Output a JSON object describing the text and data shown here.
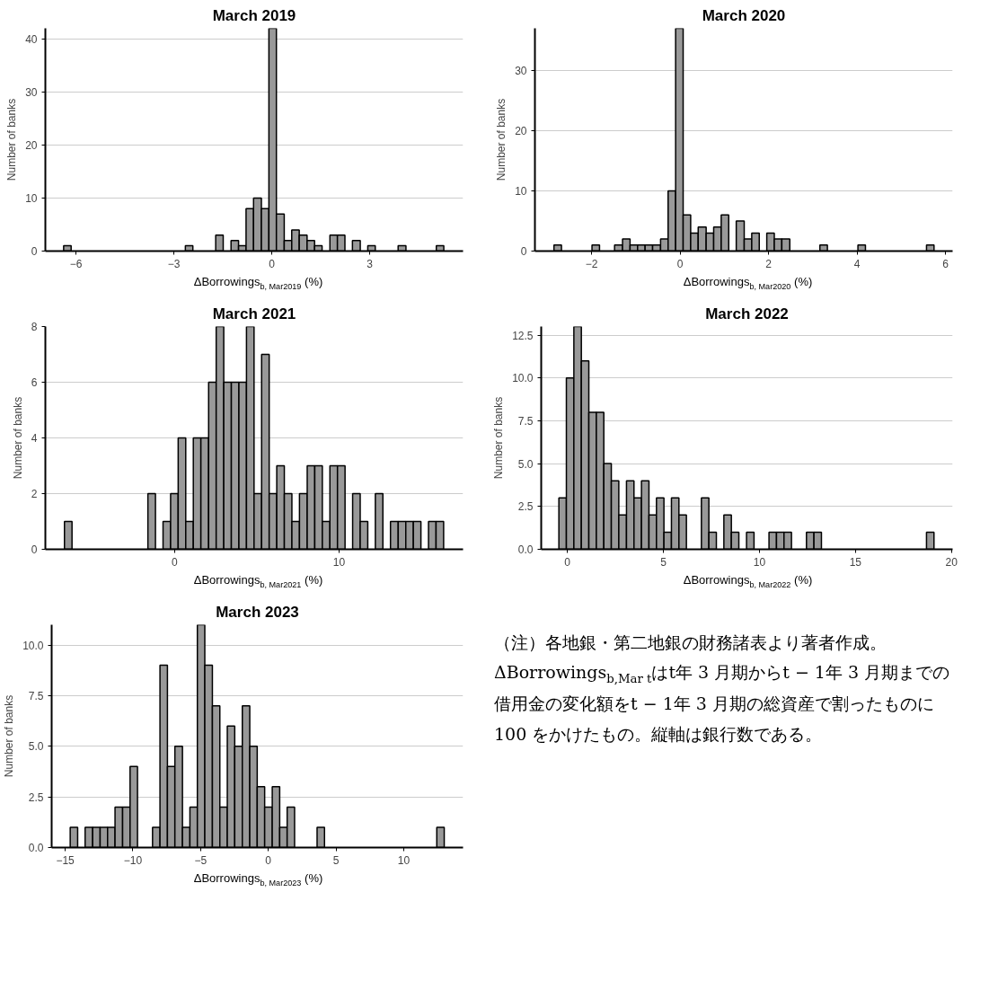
{
  "chart_data": [
    {
      "type": "histogram",
      "title": "March 2019",
      "xlabel": "ΔBorrowings$_{b, Mar2019}$ (%)",
      "ylabel": "Number of banks",
      "color": "#999999",
      "grid": "y",
      "xlim": [
        -6.94,
        5.86
      ],
      "ylim": [
        0,
        42
      ],
      "xticks": [
        -6,
        -3,
        0,
        3
      ],
      "yticks": [
        0,
        10,
        20,
        30,
        40
      ],
      "bins": [
        -6.38,
        -6.15,
        -5.91,
        -5.68,
        -5.45,
        -5.22,
        -4.98,
        -4.75,
        -4.52,
        -4.28,
        -4.05,
        -3.82,
        -3.58,
        -3.35,
        -3.12,
        -2.89,
        -2.65,
        -2.42,
        -2.19,
        -1.95,
        -1.72,
        -1.49,
        -1.25,
        -1.02,
        -0.79,
        -0.56,
        -0.32,
        -0.09,
        0.14,
        0.38,
        0.61,
        0.84,
        1.08,
        1.31,
        1.54,
        1.78,
        2.01,
        2.24,
        2.47,
        2.71,
        2.94,
        3.17,
        3.41,
        3.64,
        3.87,
        4.11,
        4.34,
        4.57,
        4.8,
        5.04,
        5.27
      ],
      "values": [
        1,
        0,
        0,
        0,
        0,
        0,
        0,
        0,
        0,
        0,
        0,
        0,
        0,
        0,
        0,
        0,
        1,
        0,
        0,
        0,
        3,
        0,
        2,
        1,
        8,
        10,
        8,
        42,
        7,
        2,
        4,
        3,
        2,
        1,
        0,
        3,
        3,
        0,
        2,
        0,
        1,
        0,
        0,
        0,
        1,
        0,
        0,
        0,
        0,
        1
      ]
    },
    {
      "type": "histogram",
      "title": "March 2020",
      "xlabel": "ΔBorrowings$_{b, Mar2020}$ (%)",
      "ylabel": "Number of banks",
      "color": "#999999",
      "grid": "y",
      "xlim": [
        -3.28,
        6.16
      ],
      "ylim": [
        0,
        37
      ],
      "xticks": [
        -2,
        0,
        2,
        4,
        6
      ],
      "yticks": [
        0,
        10,
        20,
        30
      ],
      "bins": [
        -2.85,
        -2.68,
        -2.51,
        -2.33,
        -2.16,
        -1.99,
        -1.82,
        -1.65,
        -1.48,
        -1.3,
        -1.13,
        -0.96,
        -0.79,
        -0.62,
        -0.44,
        -0.27,
        -0.1,
        0.07,
        0.24,
        0.41,
        0.59,
        0.76,
        0.93,
        1.1,
        1.27,
        1.45,
        1.62,
        1.79,
        1.96,
        2.13,
        2.3,
        2.48,
        2.65,
        2.82,
        2.99,
        3.16,
        3.33,
        3.51,
        3.68,
        3.85,
        4.02,
        4.19,
        4.37,
        4.54,
        4.71,
        4.88,
        5.05,
        5.22,
        5.4,
        5.57,
        5.74
      ],
      "values": [
        1,
        0,
        0,
        0,
        0,
        1,
        0,
        0,
        1,
        2,
        1,
        1,
        1,
        1,
        2,
        10,
        37,
        6,
        3,
        4,
        3,
        4,
        6,
        0,
        5,
        2,
        3,
        0,
        3,
        2,
        2,
        0,
        0,
        0,
        0,
        1,
        0,
        0,
        0,
        0,
        1,
        0,
        0,
        0,
        0,
        0,
        0,
        0,
        0,
        1
      ]
    },
    {
      "type": "histogram",
      "title": "March 2021",
      "xlabel": "ΔBorrowings$_{b, Mar2021}$ (%)",
      "ylabel": "Number of banks",
      "color": "#999999",
      "grid": "y",
      "xlim": [
        -7.85,
        17.53
      ],
      "ylim": [
        0,
        8
      ],
      "xticks": [
        0,
        10
      ],
      "yticks": [
        0,
        2,
        4,
        6,
        8
      ],
      "bins": [
        -6.69,
        -6.23,
        -5.77,
        -5.31,
        -4.85,
        -4.39,
        -3.93,
        -3.47,
        -3.0,
        -2.54,
        -2.08,
        -1.62,
        -1.16,
        -0.7,
        -0.24,
        0.22,
        0.68,
        1.14,
        1.6,
        2.07,
        2.53,
        2.99,
        3.45,
        3.91,
        4.37,
        4.83,
        5.29,
        5.75,
        6.21,
        6.67,
        7.13,
        7.59,
        8.06,
        8.52,
        8.98,
        9.44,
        9.9,
        10.36,
        10.82,
        11.28,
        11.74,
        12.2,
        12.66,
        13.12,
        13.59,
        14.05,
        14.51,
        14.97,
        15.43,
        15.89,
        16.35
      ],
      "values": [
        1,
        0,
        0,
        0,
        0,
        0,
        0,
        0,
        0,
        0,
        0,
        2,
        0,
        1,
        2,
        4,
        1,
        4,
        4,
        6,
        8,
        6,
        6,
        6,
        8,
        2,
        7,
        2,
        3,
        2,
        1,
        2,
        3,
        3,
        1,
        3,
        3,
        0,
        2,
        1,
        0,
        2,
        0,
        1,
        1,
        1,
        1,
        0,
        1,
        1
      ]
    },
    {
      "type": "histogram",
      "title": "March 2022",
      "xlabel": "ΔBorrowings$_{b, Mar2022}$ (%)",
      "ylabel": "Number of banks",
      "color": "#999999",
      "grid": "y",
      "xlim": [
        -1.36,
        20.06
      ],
      "ylim": [
        0,
        13
      ],
      "xticks": [
        0,
        5,
        10,
        15,
        20
      ],
      "yticks": [
        {
          "value": 0,
          "label": "0.0"
        },
        {
          "value": 2.5,
          "label": "2.5"
        },
        {
          "value": 5,
          "label": "5.0"
        },
        {
          "value": 7.5,
          "label": "7.5"
        },
        {
          "value": 10,
          "label": "10.0"
        },
        {
          "value": 12.5,
          "label": "12.5"
        }
      ],
      "bins": [
        -0.44,
        -0.05,
        0.34,
        0.73,
        1.12,
        1.51,
        1.9,
        2.29,
        2.68,
        3.08,
        3.47,
        3.86,
        4.25,
        4.64,
        5.03,
        5.42,
        5.81,
        6.2,
        6.59,
        6.98,
        7.37,
        7.76,
        8.15,
        8.54,
        8.93,
        9.33,
        9.72,
        10.11,
        10.5,
        10.89,
        11.28,
        11.67,
        12.06,
        12.45,
        12.84,
        13.23,
        13.62,
        14.01,
        14.4,
        14.79,
        15.18,
        15.57,
        15.97,
        16.36,
        16.75,
        17.14,
        17.53,
        17.92,
        18.31,
        18.7,
        19.09
      ],
      "values": [
        3,
        10,
        13,
        11,
        8,
        8,
        5,
        4,
        2,
        4,
        3,
        4,
        2,
        3,
        1,
        3,
        2,
        0,
        0,
        3,
        1,
        0,
        2,
        1,
        0,
        1,
        0,
        0,
        1,
        1,
        1,
        0,
        0,
        1,
        1,
        0,
        0,
        0,
        0,
        0,
        0,
        0,
        0,
        0,
        0,
        0,
        0,
        0,
        0,
        1
      ]
    },
    {
      "type": "histogram",
      "title": "March 2023",
      "xlabel": "ΔBorrowings$_{b, Mar2023}$ (%)",
      "ylabel": "Number of banks",
      "color": "#999999",
      "grid": "y",
      "xlim": [
        -16.0,
        14.38
      ],
      "ylim": [
        0,
        11
      ],
      "xticks": [
        -15,
        -10,
        -5,
        0,
        5,
        10
      ],
      "yticks": [
        {
          "value": 0,
          "label": "0.0"
        },
        {
          "value": 2.5,
          "label": "2.5"
        },
        {
          "value": 5,
          "label": "5.0"
        },
        {
          "value": 7.5,
          "label": "7.5"
        },
        {
          "value": 10,
          "label": "10.0"
        }
      ],
      "bins": [
        -14.63,
        -14.08,
        -13.53,
        -12.97,
        -12.42,
        -11.87,
        -11.32,
        -10.76,
        -10.21,
        -9.66,
        -9.11,
        -8.55,
        -8.0,
        -7.45,
        -6.9,
        -6.34,
        -5.79,
        -5.24,
        -4.69,
        -4.13,
        -3.58,
        -3.03,
        -2.48,
        -1.92,
        -1.37,
        -0.82,
        -0.27,
        0.29,
        0.84,
        1.39,
        1.94,
        2.49,
        3.05,
        3.6,
        4.15,
        4.7,
        5.26,
        5.81,
        6.36,
        6.91,
        7.47,
        8.02,
        8.57,
        9.12,
        9.68,
        10.23,
        10.78,
        11.33,
        11.89,
        12.44,
        12.99
      ],
      "values": [
        1,
        0,
        1,
        1,
        1,
        1,
        2,
        2,
        4,
        0,
        0,
        1,
        9,
        4,
        5,
        1,
        2,
        11,
        9,
        7,
        2,
        6,
        5,
        7,
        5,
        3,
        2,
        3,
        1,
        2,
        0,
        0,
        0,
        1,
        0,
        0,
        0,
        0,
        0,
        0,
        0,
        0,
        0,
        0,
        0,
        0,
        0,
        0,
        0,
        1
      ]
    },
    {
      "type": "other",
      "annotations": [
        "（注）各地銀・第二地銀の財務諸表より著者作成。ΔBorrowings$_{b,Mar t}$はt年 3 月期からt − 1年 3 月期までの借用金の変化額をt − 1年 3 月期の総資産で割ったものに 100 をかけたもの。縦軸は銀行数である。"
      ]
    }
  ]
}
